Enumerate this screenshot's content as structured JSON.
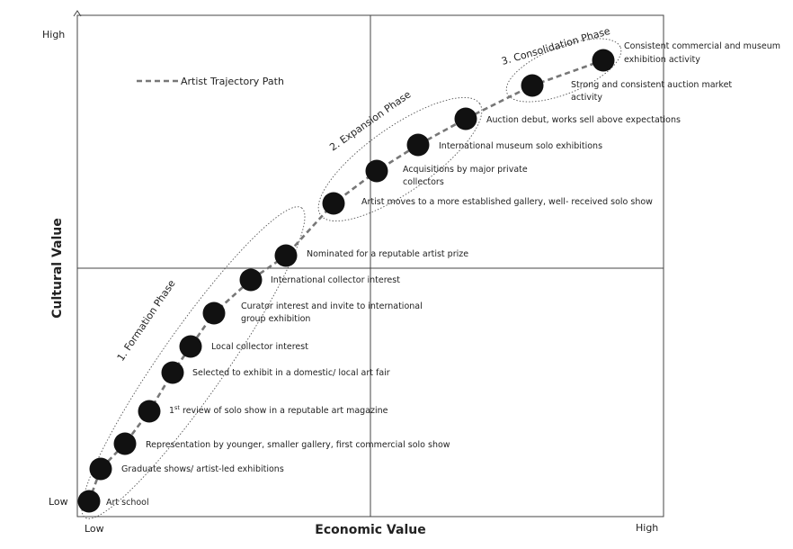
{
  "axes": {
    "y_title": "Cultural Value",
    "x_title": "Economic Value",
    "y_high": "High",
    "y_low": "Low",
    "x_low": "Low",
    "x_high": "High"
  },
  "legend": {
    "label": "Artist Trajectory Path"
  },
  "phases": [
    {
      "label": "1. Formation Phase"
    },
    {
      "label": "2. Expansion Phase"
    },
    {
      "label": "3. Consolidation Phase"
    }
  ],
  "milestones": [
    {
      "label": "Art school"
    },
    {
      "label": "Graduate shows/ artist-led exhibitions"
    },
    {
      "label": "Representation by younger, smaller gallery, first commercial solo show"
    },
    {
      "label_pre": "1",
      "label_sup": "st",
      "label_post": " review of solo show in a reputable art magazine"
    },
    {
      "label": "Selected to exhibit in a domestic/ local art fair"
    },
    {
      "label": "Local collector  interest"
    },
    {
      "label": "Curator interest and invite to international",
      "label2": "group exhibition"
    },
    {
      "label": "International collector  interest"
    },
    {
      "label": "Nominated for a reputable artist prize"
    },
    {
      "label": "Artist moves to a more established gallery, well- received solo show"
    },
    {
      "label": "Acquisitions by major private",
      "label2": "collectors"
    },
    {
      "label": "International museum solo exhibitions"
    },
    {
      "label": "Auction debut, works sell  above expectations"
    },
    {
      "label": "Strong and consistent auction market",
      "label2": "activity"
    },
    {
      "label": "Consistent commercial and museum",
      "label2": "exhibition activity"
    }
  ],
  "colors": {
    "node": "#111111",
    "path": "#777777",
    "axis": "#444444"
  }
}
